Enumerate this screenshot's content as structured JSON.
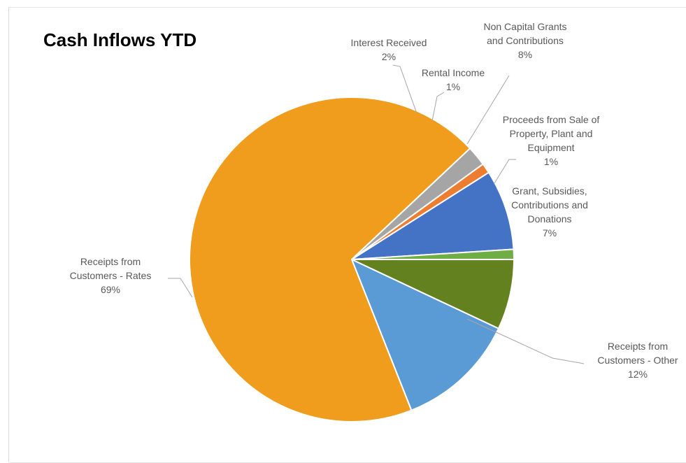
{
  "chart_data": {
    "type": "pie",
    "title": "Cash Inflows YTD",
    "slices": [
      {
        "name": "Grant, Subsidies, Contributions and Donations",
        "label_lines": [
          "Grant, Subsidies,",
          "Contributions and",
          "Donations"
        ],
        "percent_label": "7%",
        "value": 7,
        "color": "#63821f"
      },
      {
        "name": "Receipts from Customers - Other",
        "label_lines": [
          "Receipts from",
          "Customers - Other"
        ],
        "percent_label": "12%",
        "value": 12,
        "color": "#5b9bd5"
      },
      {
        "name": "Receipts from Customers - Rates",
        "label_lines": [
          "Receipts from",
          "Customers - Rates"
        ],
        "percent_label": "69%",
        "value": 69,
        "color": "#f09c1d"
      },
      {
        "name": "Interest Received",
        "label_lines": [
          "Interest Received"
        ],
        "percent_label": "2%",
        "value": 2,
        "color": "#a5a5a5"
      },
      {
        "name": "Rental Income",
        "label_lines": [
          "Rental Income"
        ],
        "percent_label": "1%",
        "value": 1,
        "color": "#ed7d31"
      },
      {
        "name": "Non Capital Grants and Contributions",
        "label_lines": [
          "Non Capital Grants",
          "and Contributions"
        ],
        "percent_label": "8%",
        "value": 8,
        "color": "#4472c4"
      },
      {
        "name": "Proceeds from Sale of Property, Plant and Equipment",
        "label_lines": [
          "Proceeds from Sale of",
          "Property, Plant and",
          "Equipment"
        ],
        "percent_label": "1%",
        "value": 1,
        "color": "#70ad47"
      }
    ],
    "legend": "none",
    "data_labels": "outside with leader lines"
  }
}
